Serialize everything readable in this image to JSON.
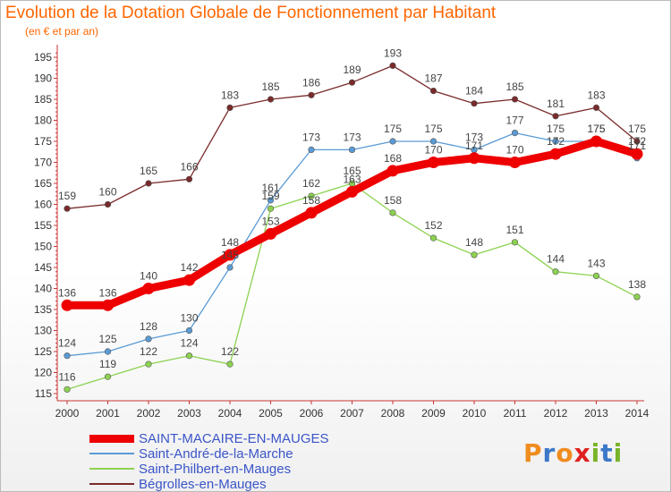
{
  "title": "Evolution de la Dotation Globale de Fonctionnement par Habitant",
  "subtitle": "(en € et par an)",
  "logo": {
    "letters": [
      "P",
      "r",
      "o",
      "x",
      "i",
      "t",
      "i"
    ],
    "colors": [
      "#f08c1e",
      "#3c78c8",
      "#f08c1e",
      "#e02020",
      "#78b428",
      "#3c78c8",
      "#78b428"
    ]
  },
  "chart_data": {
    "type": "line",
    "title": "Evolution de la Dotation Globale de Fonctionnement par Habitant",
    "subtitle": "(en € et par an)",
    "x": [
      "2000",
      "2001",
      "2002",
      "2003",
      "2004",
      "2005",
      "2006",
      "2007",
      "2008",
      "2009",
      "2010",
      "2011",
      "2012",
      "2013",
      "2014"
    ],
    "ylim": [
      113,
      197
    ],
    "yticks": [
      115,
      120,
      125,
      130,
      135,
      140,
      145,
      150,
      155,
      160,
      165,
      170,
      175,
      180,
      185,
      190,
      195
    ],
    "grid": "none",
    "legend_position": "bottom",
    "series": [
      {
        "name": "SAINT-MACAIRE-EN-MAUGES",
        "color": "#ee0000",
        "values": [
          136,
          136,
          140,
          142,
          148,
          153,
          158,
          163,
          168,
          170,
          171,
          170,
          172,
          175,
          172
        ]
      },
      {
        "name": "Saint-André-de-la-Marche",
        "color": "#5a9bd5",
        "values": [
          124,
          125,
          128,
          130,
          145,
          161,
          173,
          173,
          175,
          175,
          173,
          177,
          175,
          175,
          171
        ]
      },
      {
        "name": "Saint-Philbert-en-Mauges",
        "color": "#8cd250",
        "values": [
          116,
          119,
          122,
          124,
          122,
          159,
          162,
          165,
          158,
          152,
          148,
          151,
          144,
          143,
          138
        ]
      },
      {
        "name": "Bégrolles-en-Mauges",
        "color": "#7a2a2a",
        "values": [
          159,
          160,
          165,
          166,
          183,
          185,
          186,
          189,
          193,
          187,
          184,
          185,
          181,
          183,
          175
        ]
      }
    ]
  }
}
